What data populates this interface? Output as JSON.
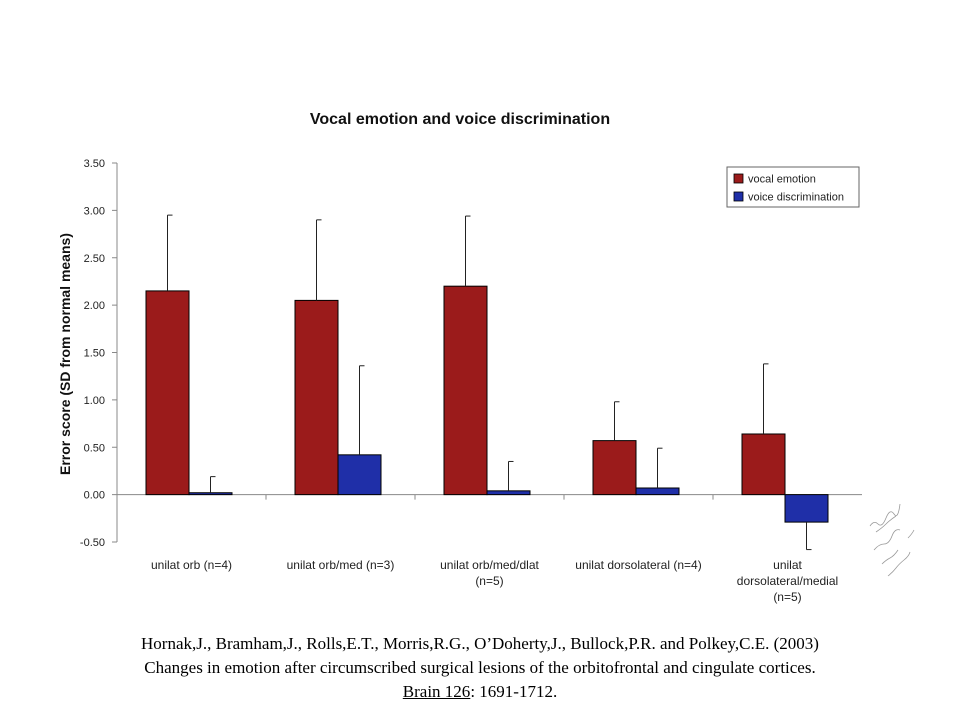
{
  "chart_data": {
    "type": "bar",
    "title": "Vocal emotion and voice discrimination",
    "ylabel": "Error score (SD from normal means)",
    "xlabel": "",
    "ylim": [
      -0.5,
      3.5
    ],
    "yticks": [
      -0.5,
      0.0,
      0.5,
      1.0,
      1.5,
      2.0,
      2.5,
      3.0,
      3.5
    ],
    "ytick_labels": [
      "-0.50",
      "0.00",
      "0.50",
      "1.00",
      "1.50",
      "2.00",
      "2.50",
      "3.00",
      "3.50"
    ],
    "categories": [
      [
        "unilat orb (n=4)"
      ],
      [
        "unilat orb/med (n=3)"
      ],
      [
        "unilat orb/med/dlat",
        "(n=5)"
      ],
      [
        "unilat dorsolateral (n=4)"
      ],
      [
        "unilat",
        "dorsolateral/medial",
        "(n=5)"
      ]
    ],
    "series": [
      {
        "name": "vocal emotion",
        "color": "#9b1b1b",
        "values": [
          2.15,
          2.05,
          2.2,
          0.57,
          0.64
        ],
        "errors": [
          0.8,
          0.85,
          0.74,
          0.41,
          0.74
        ]
      },
      {
        "name": "voice discrimination",
        "color": "#1f2fa8",
        "values": [
          0.02,
          0.42,
          0.04,
          0.07,
          -0.29
        ],
        "errors": [
          0.17,
          0.94,
          0.31,
          0.42,
          0.29
        ]
      }
    ],
    "grid": false,
    "legend_position": "top-right"
  },
  "citation": {
    "line1": "Hornak,J., Bramham,J., Rolls,E.T., Morris,R.G., O’Doherty,J., Bullock,P.R. and Polkey,C.E. (2003)",
    "line2": "Changes in emotion after circumscribed surgical lesions of the orbitofrontal and cingulate cortices.",
    "journal": "Brain 126",
    "pages": ": 1691-1712."
  }
}
